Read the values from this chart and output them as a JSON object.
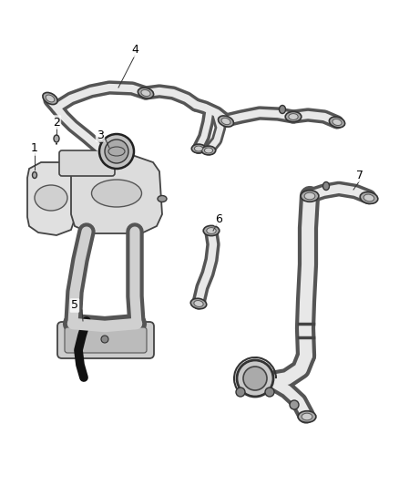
{
  "background_color": "#ffffff",
  "line_color": "#444444",
  "label_color": "#000000",
  "fig_width": 4.38,
  "fig_height": 5.33,
  "dpi": 100,
  "tube_outer_color": "#555555",
  "tube_inner_color": "#e8e8e8",
  "connector_color": "#888888",
  "black_hose_color": "#111111",
  "label_fontsize": 9,
  "leader_lw": 0.7
}
